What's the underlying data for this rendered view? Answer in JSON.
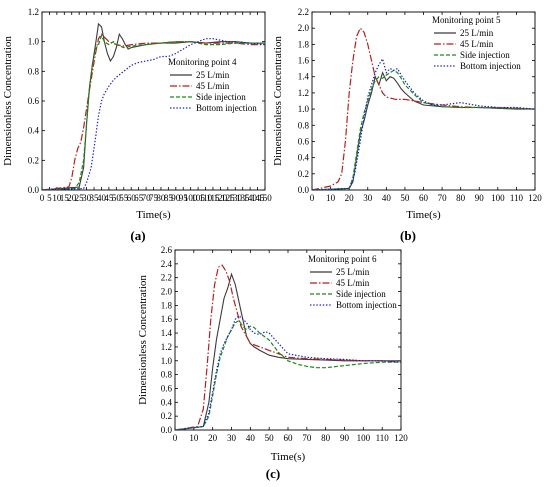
{
  "colors": {
    "s25": "#3b3b3b",
    "s45": "#b22222",
    "side": "#1a8a1a",
    "bottom": "#1a1acc"
  },
  "chart_data": [
    {
      "type": "line",
      "panel_label": "(a)",
      "legend_title": "Monitoring point 4",
      "xlabel": "Time(s)",
      "ylabel": "Dimensionless Concentration",
      "xlim": [
        0,
        150
      ],
      "ylim": [
        0,
        1.2
      ],
      "xticks": [
        0,
        5,
        10,
        15,
        20,
        25,
        30,
        35,
        40,
        45,
        50,
        55,
        60,
        65,
        70,
        75,
        80,
        85,
        90,
        95,
        100,
        105,
        110,
        115,
        120,
        125,
        130,
        135,
        140,
        145,
        150
      ],
      "yticks": [
        0.0,
        0.2,
        0.4,
        0.6,
        0.8,
        1.0,
        1.2
      ],
      "series": [
        {
          "name": "25 L/min",
          "style": "solid",
          "x": [
            0,
            25,
            28,
            30,
            32,
            34,
            36,
            38,
            40,
            42,
            44,
            46,
            48,
            50,
            52,
            54,
            56,
            58,
            60,
            65,
            70,
            80,
            90,
            100,
            110,
            120,
            130,
            140,
            150
          ],
          "y": [
            0,
            0.02,
            0.15,
            0.45,
            0.7,
            0.85,
            0.98,
            1.12,
            1.1,
            1.0,
            0.92,
            0.87,
            0.9,
            0.96,
            1.05,
            1.02,
            0.98,
            0.95,
            0.96,
            0.97,
            0.98,
            0.99,
            0.99,
            1.0,
            0.99,
            1.0,
            1.0,
            0.99,
            0.99
          ]
        },
        {
          "name": "45 L/min",
          "style": "dashdot",
          "x": [
            0,
            18,
            20,
            22,
            24,
            26,
            28,
            30,
            32,
            34,
            36,
            38,
            40,
            45,
            50,
            55,
            60,
            70,
            80,
            90,
            100,
            110,
            120,
            130,
            140,
            150
          ],
          "y": [
            0,
            0.02,
            0.08,
            0.2,
            0.28,
            0.32,
            0.42,
            0.55,
            0.68,
            0.8,
            0.92,
            1.02,
            1.05,
            1.0,
            0.98,
            0.97,
            0.98,
            0.99,
            0.99,
            1.0,
            1.0,
            0.99,
            0.99,
            0.99,
            0.98,
            0.98
          ]
        },
        {
          "name": "Side injection",
          "style": "dashed",
          "x": [
            0,
            22,
            25,
            28,
            30,
            32,
            34,
            36,
            38,
            40,
            42,
            45,
            48,
            50,
            55,
            60,
            70,
            80,
            90,
            100,
            110,
            120,
            130,
            140,
            150
          ],
          "y": [
            0,
            0.01,
            0.05,
            0.2,
            0.45,
            0.7,
            0.85,
            0.95,
            0.98,
            1.04,
            1.0,
            0.98,
            1.0,
            0.98,
            0.96,
            0.97,
            0.98,
            0.99,
            1.0,
            1.0,
            0.98,
            0.98,
            0.99,
            0.99,
            0.99
          ]
        },
        {
          "name": "Bottom injection",
          "style": "dotted",
          "x": [
            0,
            28,
            30,
            33,
            36,
            38,
            40,
            42,
            45,
            48,
            50,
            55,
            60,
            65,
            70,
            75,
            80,
            85,
            90,
            95,
            100,
            105,
            110,
            115,
            120,
            125,
            130,
            140,
            150
          ],
          "y": [
            0,
            0.01,
            0.05,
            0.15,
            0.35,
            0.5,
            0.6,
            0.65,
            0.7,
            0.74,
            0.76,
            0.8,
            0.84,
            0.86,
            0.87,
            0.88,
            0.9,
            0.9,
            0.92,
            0.95,
            0.98,
            1.0,
            1.02,
            1.02,
            1.01,
            1.0,
            1.0,
            0.99,
            0.98
          ]
        }
      ]
    },
    {
      "type": "line",
      "panel_label": "(b)",
      "legend_title": "Monitoring point 5",
      "xlabel": "Time(s)",
      "ylabel": "Dimensionless Concentration",
      "xlim": [
        0,
        120
      ],
      "ylim": [
        0,
        2.2
      ],
      "xticks": [
        0,
        10,
        20,
        30,
        40,
        50,
        60,
        70,
        80,
        90,
        100,
        110,
        120
      ],
      "yticks": [
        0.0,
        0.2,
        0.4,
        0.6,
        0.8,
        1.0,
        1.2,
        1.4,
        1.6,
        1.8,
        2.0,
        2.2
      ],
      "series": [
        {
          "name": "25 L/min",
          "style": "solid",
          "x": [
            0,
            20,
            22,
            24,
            26,
            28,
            30,
            32,
            34,
            36,
            38,
            40,
            42,
            44,
            46,
            48,
            50,
            55,
            60,
            70,
            80,
            90,
            100,
            110,
            120
          ],
          "y": [
            0,
            0.02,
            0.1,
            0.4,
            0.7,
            0.85,
            1.05,
            1.2,
            1.4,
            1.3,
            1.45,
            1.35,
            1.4,
            1.38,
            1.32,
            1.25,
            1.2,
            1.1,
            1.05,
            1.03,
            1.02,
            1.02,
            1.01,
            1.0,
            1.0
          ]
        },
        {
          "name": "45 L/min",
          "style": "dashdot",
          "x": [
            0,
            10,
            14,
            16,
            18,
            20,
            22,
            24,
            26,
            28,
            30,
            32,
            34,
            36,
            38,
            40,
            45,
            50,
            55,
            60,
            70,
            80,
            90,
            100,
            110,
            120
          ],
          "y": [
            0,
            0.05,
            0.1,
            0.2,
            0.6,
            1.2,
            1.6,
            1.9,
            2.0,
            1.95,
            1.8,
            1.6,
            1.4,
            1.3,
            1.2,
            1.15,
            1.12,
            1.12,
            1.1,
            1.08,
            1.05,
            1.03,
            1.02,
            1.02,
            1.01,
            1.0
          ]
        },
        {
          "name": "Side injection",
          "style": "dashed",
          "x": [
            0,
            20,
            22,
            24,
            26,
            28,
            30,
            32,
            34,
            36,
            38,
            40,
            42,
            44,
            46,
            48,
            50,
            55,
            60,
            70,
            80,
            90,
            100,
            110,
            120
          ],
          "y": [
            0,
            0.02,
            0.15,
            0.45,
            0.75,
            0.95,
            1.1,
            1.25,
            1.35,
            1.4,
            1.38,
            1.42,
            1.45,
            1.48,
            1.45,
            1.38,
            1.3,
            1.18,
            1.08,
            1.03,
            1.02,
            1.02,
            1.01,
            1.01,
            1.0
          ]
        },
        {
          "name": "Bottom injection",
          "style": "dotted",
          "x": [
            0,
            20,
            23,
            26,
            28,
            30,
            32,
            34,
            36,
            38,
            40,
            42,
            44,
            46,
            48,
            50,
            55,
            60,
            65,
            70,
            80,
            90,
            100,
            110,
            120
          ],
          "y": [
            0,
            0.02,
            0.2,
            0.6,
            0.9,
            1.15,
            1.3,
            1.45,
            1.55,
            1.62,
            1.45,
            1.5,
            1.48,
            1.5,
            1.42,
            1.35,
            1.2,
            1.1,
            1.05,
            1.05,
            1.08,
            1.04,
            1.02,
            1.02,
            1.0
          ]
        }
      ]
    },
    {
      "type": "line",
      "panel_label": "(c)",
      "legend_title": "Monitoring point 6",
      "xlabel": "Time(s)",
      "ylabel": "Dimensionless Concentration",
      "xlim": [
        0,
        120
      ],
      "ylim": [
        0,
        2.6
      ],
      "xticks": [
        0,
        10,
        20,
        30,
        40,
        50,
        60,
        70,
        80,
        90,
        100,
        110,
        120
      ],
      "yticks": [
        0.0,
        0.2,
        0.4,
        0.6,
        0.8,
        1.0,
        1.2,
        1.4,
        1.6,
        1.8,
        2.0,
        2.2,
        2.4,
        2.6
      ],
      "series": [
        {
          "name": "25 L/min",
          "style": "solid",
          "x": [
            0,
            15,
            18,
            20,
            22,
            24,
            26,
            28,
            30,
            32,
            34,
            36,
            38,
            40,
            42,
            45,
            50,
            55,
            60,
            70,
            80,
            90,
            100,
            110,
            120
          ],
          "y": [
            0,
            0.05,
            0.4,
            0.9,
            1.3,
            1.6,
            1.9,
            2.05,
            2.25,
            2.1,
            1.85,
            1.6,
            1.35,
            1.25,
            1.2,
            1.15,
            1.08,
            1.05,
            1.03,
            1.02,
            1.01,
            1.0,
            1.0,
            1.0,
            1.0
          ]
        },
        {
          "name": "45 L/min",
          "style": "dashdot",
          "x": [
            0,
            12,
            15,
            17,
            19,
            21,
            23,
            25,
            27,
            29,
            31,
            33,
            35,
            38,
            40,
            45,
            50,
            55,
            60,
            70,
            80,
            90,
            100,
            110,
            120
          ],
          "y": [
            0,
            0.05,
            0.3,
            0.9,
            1.6,
            2.1,
            2.35,
            2.38,
            2.3,
            2.15,
            1.9,
            1.7,
            1.5,
            1.35,
            1.25,
            1.2,
            1.15,
            1.1,
            1.05,
            1.03,
            1.02,
            1.01,
            1.0,
            1.0,
            0.98
          ]
        },
        {
          "name": "Side injection",
          "style": "dashed",
          "x": [
            0,
            15,
            18,
            20,
            22,
            24,
            26,
            28,
            30,
            32,
            34,
            36,
            38,
            40,
            42,
            45,
            50,
            55,
            60,
            65,
            70,
            75,
            80,
            90,
            100,
            110,
            120
          ],
          "y": [
            0,
            0.05,
            0.2,
            0.5,
            0.8,
            1.05,
            1.2,
            1.35,
            1.45,
            1.55,
            1.58,
            1.5,
            1.45,
            1.5,
            1.48,
            1.4,
            1.3,
            1.12,
            1.0,
            0.95,
            0.92,
            0.9,
            0.9,
            0.93,
            0.96,
            0.98,
            0.98
          ]
        },
        {
          "name": "Bottom injection",
          "style": "dotted",
          "x": [
            0,
            15,
            18,
            20,
            22,
            24,
            26,
            28,
            30,
            32,
            34,
            36,
            38,
            40,
            42,
            45,
            48,
            50,
            55,
            60,
            70,
            80,
            90,
            100,
            110,
            120
          ],
          "y": [
            0,
            0.05,
            0.25,
            0.55,
            0.85,
            1.1,
            1.25,
            1.35,
            1.45,
            1.6,
            1.65,
            1.6,
            1.55,
            1.45,
            1.4,
            1.38,
            1.42,
            1.4,
            1.25,
            1.1,
            1.05,
            1.03,
            1.02,
            1.0,
            1.0,
            0.98
          ]
        }
      ]
    }
  ]
}
